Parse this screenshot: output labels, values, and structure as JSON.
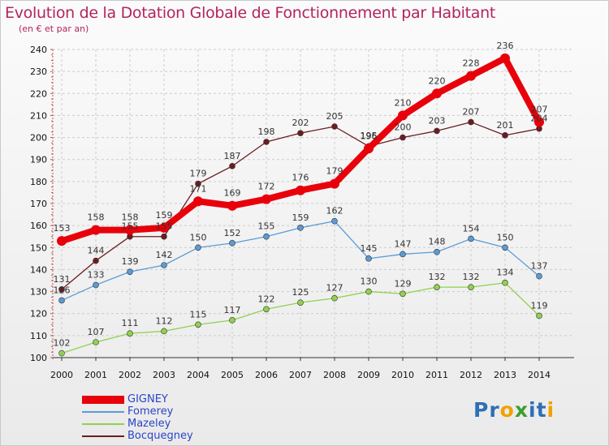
{
  "chart_data": {
    "type": "line",
    "title": "Evolution de la Dotation Globale de Fonctionnement par Habitant",
    "subtitle": "(en € et par an)",
    "x": [
      "2000",
      "2001",
      "2002",
      "2003",
      "2004",
      "2005",
      "2006",
      "2007",
      "2008",
      "2009",
      "2010",
      "2011",
      "2012",
      "2013",
      "2014"
    ],
    "ylim": [
      100,
      240
    ],
    "yticks": [
      100,
      110,
      120,
      130,
      140,
      150,
      160,
      170,
      180,
      190,
      200,
      210,
      220,
      230,
      240
    ],
    "series": [
      {
        "name": "GIGNEY",
        "color": "#e8000b",
        "values": [
          153,
          158,
          158,
          159,
          171,
          169,
          172,
          176,
          179,
          195,
          210,
          220,
          228,
          236,
          207
        ]
      },
      {
        "name": "Fomerey",
        "color": "#5b9bd5",
        "values": [
          126,
          133,
          139,
          142,
          150,
          152,
          155,
          159,
          162,
          145,
          147,
          148,
          154,
          150,
          137
        ]
      },
      {
        "name": "Mazeley",
        "color": "#92d050",
        "values": [
          102,
          107,
          111,
          112,
          115,
          117,
          122,
          125,
          127,
          130,
          129,
          132,
          132,
          134,
          119
        ]
      },
      {
        "name": "Bocquegney",
        "color": "#6b1c22",
        "values": [
          131,
          144,
          155,
          155,
          179,
          187,
          198,
          202,
          205,
          196,
          200,
          203,
          207,
          201,
          204
        ]
      }
    ],
    "legend": "bottom-left"
  },
  "brand": {
    "letters": [
      {
        "ch": "P",
        "color": "#2e6fb5"
      },
      {
        "ch": "r",
        "color": "#2e6fb5"
      },
      {
        "ch": "o",
        "color": "#f2a100"
      },
      {
        "ch": "x",
        "color": "#3d9e2f"
      },
      {
        "ch": "i",
        "color": "#2e6fb5"
      },
      {
        "ch": "t",
        "color": "#2e6fb5"
      },
      {
        "ch": "i",
        "color": "#f2a100"
      }
    ]
  }
}
